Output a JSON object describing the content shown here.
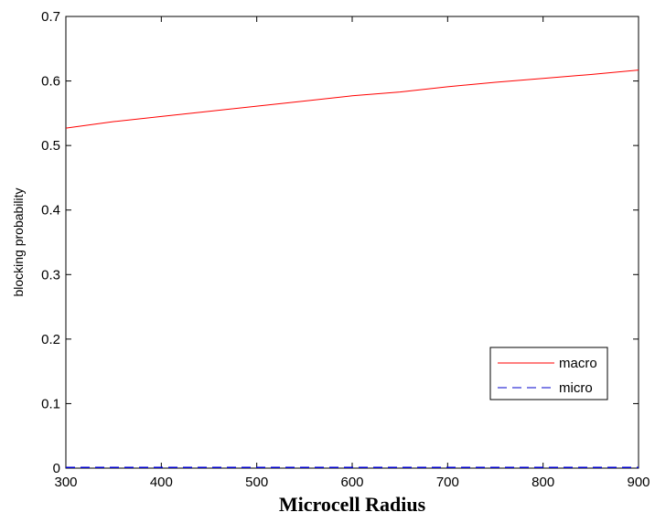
{
  "chart_data": {
    "type": "line",
    "title": "",
    "xlabel": "Microcell Radius",
    "ylabel": "blocking probability",
    "xlim": [
      300,
      900
    ],
    "ylim": [
      0,
      0.7
    ],
    "xticks": [
      300,
      400,
      500,
      600,
      700,
      800,
      900
    ],
    "xtick_labels": [
      "300",
      "400",
      "500",
      "600",
      "700",
      "800",
      "900"
    ],
    "yticks": [
      0,
      0.1,
      0.2,
      0.3,
      0.4,
      0.5,
      0.6,
      0.7
    ],
    "ytick_labels": [
      "0",
      "0.1",
      "0.2",
      "0.3",
      "0.4",
      "0.5",
      "0.6",
      "0.7"
    ],
    "grid": false,
    "legend_position": "lower-right",
    "x": [
      300,
      350,
      400,
      450,
      500,
      550,
      600,
      650,
      700,
      750,
      800,
      850,
      900
    ],
    "series": [
      {
        "name": "macro",
        "color": "#ff0000",
        "style": "solid",
        "values": [
          0.527,
          0.537,
          0.545,
          0.553,
          0.561,
          0.569,
          0.577,
          0.583,
          0.591,
          0.598,
          0.604,
          0.61,
          0.617
        ]
      },
      {
        "name": "micro",
        "color": "#0000cc",
        "style": "dashed",
        "values": [
          0.001,
          0.001,
          0.001,
          0.001,
          0.001,
          0.001,
          0.001,
          0.001,
          0.001,
          0.001,
          0.001,
          0.001,
          0.001
        ]
      }
    ]
  }
}
